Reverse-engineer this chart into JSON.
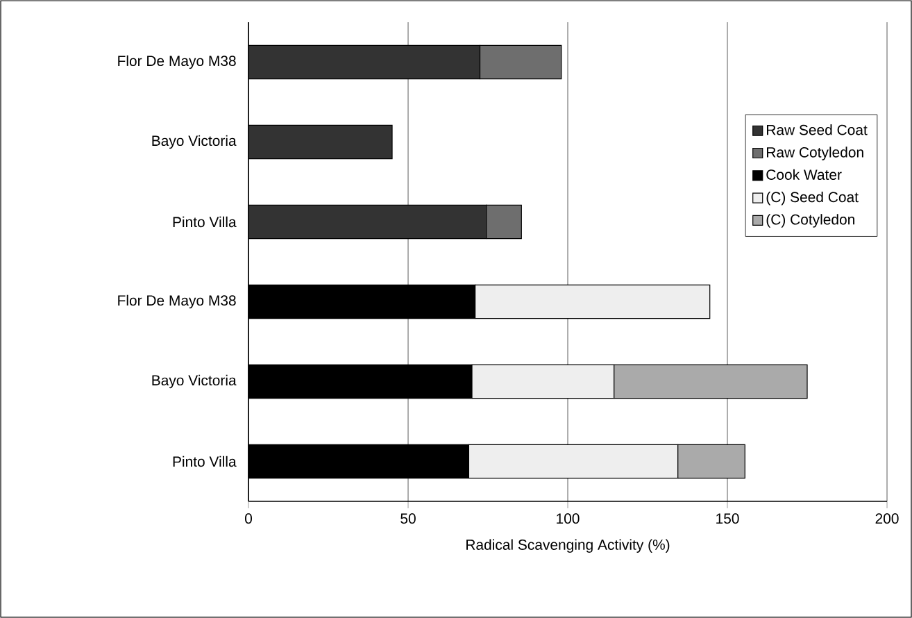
{
  "chart_data": {
    "type": "bar",
    "orientation": "horizontal",
    "stacked": true,
    "xlabel": "Radical Scavenging Activity (%)",
    "categories": [
      "Flor De Mayo M38",
      "Bayo Victoria",
      "Pinto Villa",
      "Flor De Mayo M38",
      "Bayo Victoria",
      "Pinto Villa"
    ],
    "series": [
      {
        "name": "Raw Seed Coat",
        "color": "#333333",
        "values": [
          72.5,
          45,
          74.5,
          null,
          null,
          null
        ]
      },
      {
        "name": "Raw Cotyledon",
        "color": "#6e6e6e",
        "values": [
          25.5,
          null,
          11,
          null,
          null,
          null
        ]
      },
      {
        "name": "Cook Water",
        "color": "#000000",
        "values": [
          null,
          null,
          null,
          71,
          70,
          69
        ]
      },
      {
        "name": "(C) Seed Coat",
        "color": "#eeeeee",
        "values": [
          null,
          null,
          null,
          73.5,
          44.5,
          65.5
        ]
      },
      {
        "name": "(C) Cotyledon",
        "color": "#aaaaaa",
        "values": [
          null,
          null,
          null,
          null,
          60.5,
          21
        ]
      }
    ],
    "xlim": [
      0,
      200
    ],
    "xticks": [
      0,
      50,
      100,
      150,
      200
    ],
    "grid": "x",
    "legend": "right"
  }
}
